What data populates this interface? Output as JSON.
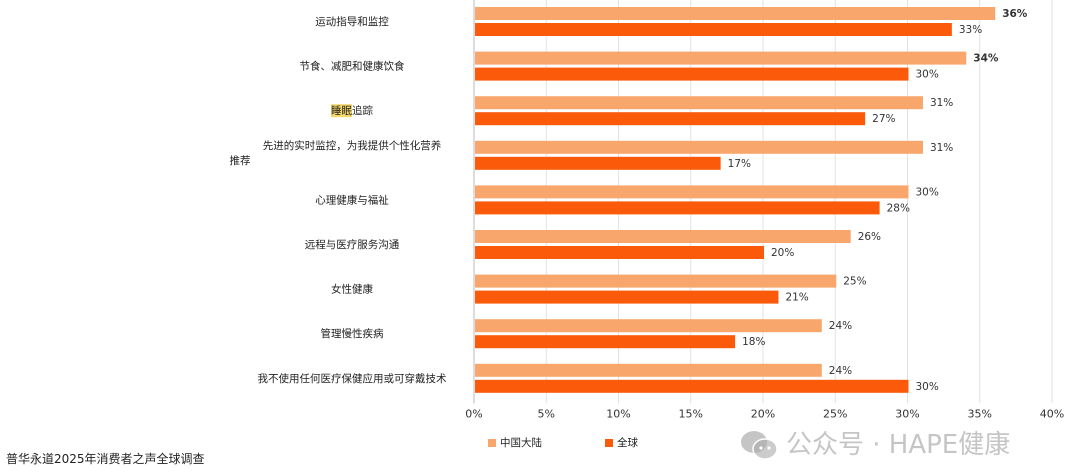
{
  "chart_data": {
    "type": "bar",
    "orientation": "horizontal",
    "categories": [
      "运动指导和监控",
      "节食、减肥和健康饮食",
      "睡眠追踪",
      "先进的实时监控，为我提供个性化营养推荐",
      "心理健康与福祉",
      "远程与医疗服务沟通",
      "女性健康",
      "管理慢性疾病",
      "我不使用任何医疗保健应用或可穿戴技术"
    ],
    "category_lines": [
      [
        "运动指导和监控"
      ],
      [
        "节食、减肥和健康饮食"
      ],
      [
        "睡眠追踪"
      ],
      [
        "先进的实时监控，为我提供个性化营养",
        "推荐"
      ],
      [
        "心理健康与福祉"
      ],
      [
        "远程与医疗服务沟通"
      ],
      [
        "女性健康"
      ],
      [
        "管理慢性疾病"
      ],
      [
        "我不使用任何医疗保健应用或可穿戴技术"
      ]
    ],
    "series": [
      {
        "name": "中国大陆",
        "color": "#F9A66C",
        "values": [
          36,
          34,
          31,
          31,
          30,
          26,
          25,
          24,
          24
        ]
      },
      {
        "name": "全球",
        "color": "#FA5A0A",
        "values": [
          33,
          30,
          27,
          17,
          28,
          20,
          21,
          18,
          30
        ]
      }
    ],
    "value_labels": [
      [
        "36%",
        "34%",
        "31%",
        "31%",
        "30%",
        "26%",
        "25%",
        "24%",
        "24%"
      ],
      [
        "33%",
        "30%",
        "27%",
        "17%",
        "28%",
        "20%",
        "21%",
        "18%",
        "30%"
      ]
    ],
    "bold_labels": [
      "36%",
      "34%"
    ],
    "highlighted_text": "睡眠",
    "xlim": [
      0,
      40
    ],
    "xticks": [
      "0%",
      "5%",
      "10%",
      "15%",
      "20%",
      "25%",
      "30%",
      "35%",
      "40%"
    ],
    "grid": true,
    "legend_position": "bottom"
  },
  "source": "普华永道2025年消费者之声全球调查",
  "watermark": "公众号 · HAPE健康"
}
